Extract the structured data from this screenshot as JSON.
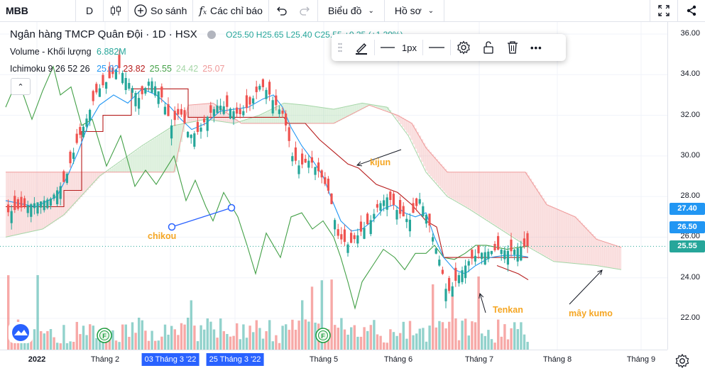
{
  "toolbar": {
    "symbol": "MBB",
    "interval": "D",
    "compare_label": "So sánh",
    "indicators_label": "Các chỉ báo",
    "chart_type_label": "Biểu đồ",
    "profile_label": "Hồ sơ"
  },
  "legend": {
    "title": "Ngân hàng TMCP Quân Đội · 1D · HSX",
    "ohlc": "O25.50 H25.65 L25.40 C25.55 +0.35 (+1.39%)",
    "volume_label": "Volume - Khối lượng",
    "volume_value": "6.882M",
    "ichimoku_label": "Ichimoku 9 26 52 26",
    "ichimoku_values": [
      {
        "text": "25.02",
        "color": "#2196f3"
      },
      {
        "text": "23.82",
        "color": "#b71c1c"
      },
      {
        "text": "25.55",
        "color": "#43a047"
      },
      {
        "text": "24.42",
        "color": "#a5d6a7"
      },
      {
        "text": "25.07",
        "color": "#ef9a9a"
      }
    ]
  },
  "floating_toolbar": {
    "width_label": "1px"
  },
  "price_axis": {
    "ticks": [
      "36.00",
      "34.00",
      "32.00",
      "30.00",
      "28.00",
      "26.00",
      "24.00",
      "22.00"
    ],
    "tags": [
      {
        "text": "27.40",
        "color": "#2196f3"
      },
      {
        "text": "26.50",
        "color": "#2196f3"
      },
      {
        "text": "25.55",
        "color": "#26a69a"
      }
    ]
  },
  "time_axis": {
    "labels": [
      {
        "text": "2022",
        "bold": true
      },
      {
        "text": "Tháng 2"
      },
      {
        "text": "03 Tháng 3 '22",
        "selected": true
      },
      {
        "text": "25 Tháng 3 '22",
        "selected": true
      },
      {
        "text": "Tháng 5"
      },
      {
        "text": "Tháng 6"
      },
      {
        "text": "Tháng 7"
      },
      {
        "text": "Tháng 8"
      },
      {
        "text": "Tháng 9"
      }
    ]
  },
  "annotations": {
    "chikou": "chikou",
    "kijun": "kijun",
    "tenkan": "Tenkan",
    "kumo": "mây kumo"
  },
  "events": [
    "F",
    "F"
  ],
  "colors": {
    "up": "#26a69a",
    "down": "#ef5350",
    "tenkan": "#2196f3",
    "kijun": "#b71c1c",
    "chikou": "#43a047",
    "span_a": "#a5d6a7",
    "span_b": "#ef9a9a",
    "annotation": "#f5a623"
  }
}
